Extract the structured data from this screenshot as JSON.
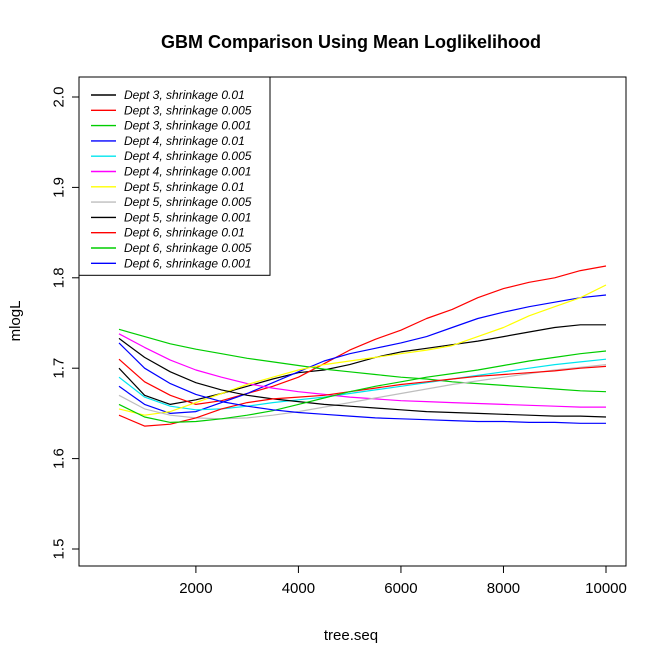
{
  "chart_data": {
    "type": "line",
    "title": "GBM Comparison Using Mean Loglikelihood",
    "xlabel": "tree.seq",
    "ylabel": "mlogL",
    "xlim": [
      500,
      10000
    ],
    "ylim": [
      1.5,
      2.0
    ],
    "x_ticks": [
      "2000",
      "4000",
      "6000",
      "8000",
      "10000"
    ],
    "y_ticks": [
      "1.5",
      "1.6",
      "1.7",
      "1.8",
      "1.9",
      "2.0"
    ],
    "legend_position": "top-left",
    "x": [
      500,
      1000,
      1500,
      2000,
      2500,
      3000,
      3500,
      4000,
      4500,
      5000,
      5500,
      6000,
      6500,
      7000,
      7500,
      8000,
      8500,
      9000,
      9500,
      10000
    ],
    "series": [
      {
        "name": "Dept 3, shrinkage 0.01",
        "color": "#000000",
        "values": [
          1.7,
          1.67,
          1.66,
          1.665,
          1.672,
          1.68,
          1.688,
          1.695,
          1.698,
          1.704,
          1.712,
          1.718,
          1.722,
          1.726,
          1.73,
          1.735,
          1.74,
          1.745,
          1.748,
          1.748
        ]
      },
      {
        "name": "Dept 3, shrinkage 0.005",
        "color": "#ff0000",
        "values": [
          1.71,
          1.685,
          1.67,
          1.66,
          1.664,
          1.672,
          1.68,
          1.69,
          1.705,
          1.72,
          1.732,
          1.742,
          1.755,
          1.765,
          1.778,
          1.788,
          1.795,
          1.8,
          1.808,
          1.813
        ]
      },
      {
        "name": "Dept 3, shrinkage 0.001",
        "color": "#00cd00",
        "values": [
          1.743,
          1.735,
          1.727,
          1.721,
          1.716,
          1.711,
          1.707,
          1.703,
          1.699,
          1.696,
          1.693,
          1.69,
          1.688,
          1.685,
          1.683,
          1.681,
          1.679,
          1.677,
          1.675,
          1.674
        ]
      },
      {
        "name": "Dept 4, shrinkage 0.01",
        "color": "#0000ff",
        "values": [
          1.68,
          1.66,
          1.65,
          1.652,
          1.662,
          1.672,
          1.684,
          1.696,
          1.708,
          1.716,
          1.722,
          1.728,
          1.735,
          1.745,
          1.755,
          1.762,
          1.768,
          1.773,
          1.778,
          1.781
        ]
      },
      {
        "name": "Dept 4, shrinkage 0.005",
        "color": "#00e5ee",
        "values": [
          1.69,
          1.668,
          1.658,
          1.654,
          1.655,
          1.658,
          1.662,
          1.665,
          1.668,
          1.672,
          1.676,
          1.68,
          1.684,
          1.688,
          1.692,
          1.696,
          1.7,
          1.704,
          1.707,
          1.71
        ]
      },
      {
        "name": "Dept 4, shrinkage 0.001",
        "color": "#ff00ff",
        "values": [
          1.738,
          1.723,
          1.709,
          1.698,
          1.69,
          1.683,
          1.678,
          1.674,
          1.671,
          1.668,
          1.666,
          1.664,
          1.663,
          1.662,
          1.661,
          1.66,
          1.659,
          1.658,
          1.657,
          1.657
        ]
      },
      {
        "name": "Dept 5, shrinkage 0.01",
        "color": "#ffff00",
        "values": [
          1.655,
          1.648,
          1.652,
          1.662,
          1.672,
          1.682,
          1.69,
          1.698,
          1.704,
          1.708,
          1.712,
          1.716,
          1.72,
          1.725,
          1.735,
          1.745,
          1.758,
          1.768,
          1.778,
          1.792
        ]
      },
      {
        "name": "Dept 5, shrinkage 0.005",
        "color": "#bebebe",
        "values": [
          1.67,
          1.655,
          1.648,
          1.645,
          1.644,
          1.645,
          1.648,
          1.652,
          1.657,
          1.662,
          1.667,
          1.672,
          1.677,
          1.682,
          1.686,
          1.69,
          1.694,
          1.698,
          1.701,
          1.704
        ]
      },
      {
        "name": "Dept 5, shrinkage 0.001",
        "color": "#000000",
        "values": [
          1.733,
          1.712,
          1.696,
          1.684,
          1.676,
          1.67,
          1.666,
          1.663,
          1.66,
          1.658,
          1.656,
          1.654,
          1.652,
          1.651,
          1.65,
          1.649,
          1.648,
          1.647,
          1.647,
          1.646
        ]
      },
      {
        "name": "Dept 6, shrinkage 0.01",
        "color": "#ff0000",
        "values": [
          1.648,
          1.636,
          1.638,
          1.645,
          1.655,
          1.662,
          1.666,
          1.668,
          1.67,
          1.674,
          1.678,
          1.682,
          1.685,
          1.688,
          1.691,
          1.693,
          1.695,
          1.697,
          1.7,
          1.702
        ]
      },
      {
        "name": "Dept 6, shrinkage 0.005",
        "color": "#00cd00",
        "values": [
          1.66,
          1.646,
          1.64,
          1.641,
          1.644,
          1.648,
          1.653,
          1.66,
          1.667,
          1.674,
          1.68,
          1.685,
          1.69,
          1.694,
          1.698,
          1.703,
          1.708,
          1.712,
          1.716,
          1.719
        ]
      },
      {
        "name": "Dept 6, shrinkage 0.001",
        "color": "#0000ff",
        "values": [
          1.728,
          1.7,
          1.683,
          1.671,
          1.663,
          1.658,
          1.654,
          1.651,
          1.649,
          1.647,
          1.645,
          1.644,
          1.643,
          1.642,
          1.641,
          1.641,
          1.64,
          1.64,
          1.639,
          1.639
        ]
      }
    ]
  }
}
